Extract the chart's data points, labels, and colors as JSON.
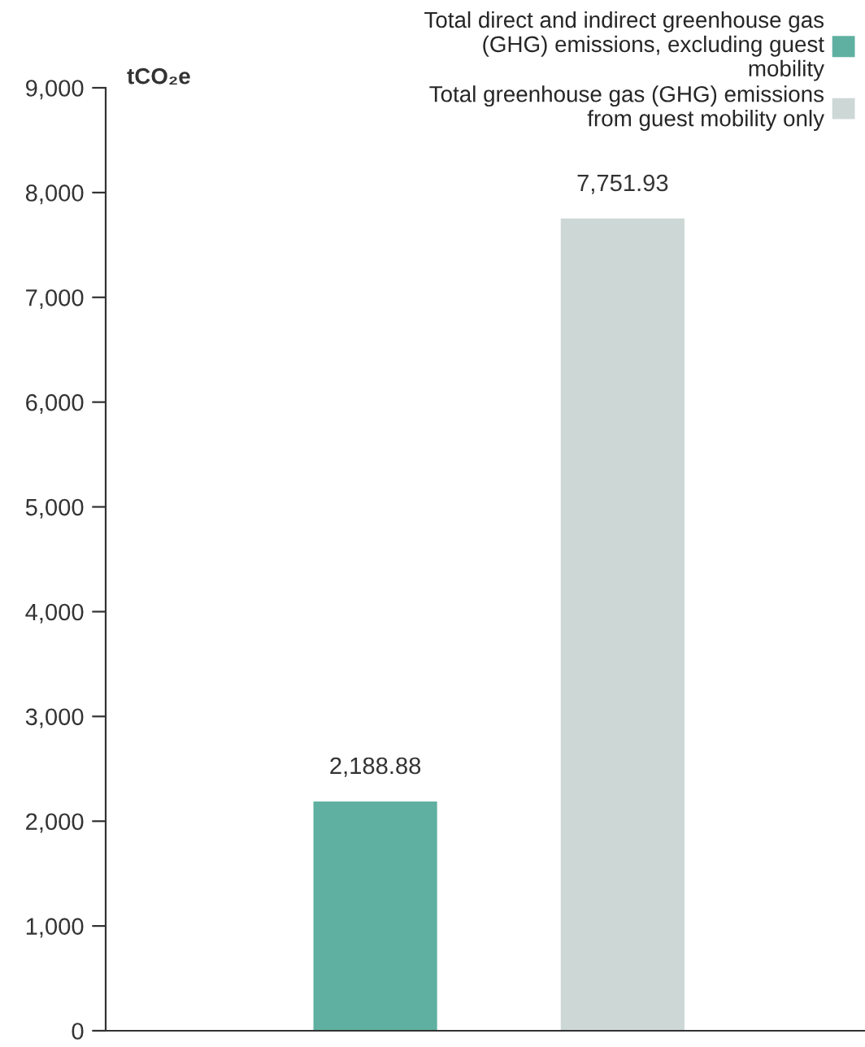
{
  "chart_data": {
    "type": "bar",
    "ylabel": "tCO₂e",
    "categories": [
      null,
      null
    ],
    "series": [
      {
        "name": "Total direct and indirect greenhouse gas (GHG) emissions, excluding guest mobility",
        "color": "#5fb0a1",
        "values": [
          2188.88,
          null
        ],
        "value_labels": [
          "2,188.88",
          null
        ]
      },
      {
        "name": "Total greenhouse gas (GHG) emissions from guest mobility only",
        "color": "#cdd8d6",
        "values": [
          null,
          7751.93
        ],
        "value_labels": [
          null,
          "7,751.93"
        ]
      }
    ],
    "ylim": [
      0,
      9000
    ],
    "yticks": [
      {
        "value": 0,
        "label": "0"
      },
      {
        "value": 1000,
        "label": "1,000"
      },
      {
        "value": 2000,
        "label": "2,000"
      },
      {
        "value": 3000,
        "label": "3,000"
      },
      {
        "value": 4000,
        "label": "4,000"
      },
      {
        "value": 5000,
        "label": "5,000"
      },
      {
        "value": 6000,
        "label": "6,000"
      },
      {
        "value": 7000,
        "label": "7,000"
      },
      {
        "value": 8000,
        "label": "8,000"
      },
      {
        "value": 9000,
        "label": "9,000"
      }
    ],
    "grid": false,
    "legend": "top right"
  }
}
